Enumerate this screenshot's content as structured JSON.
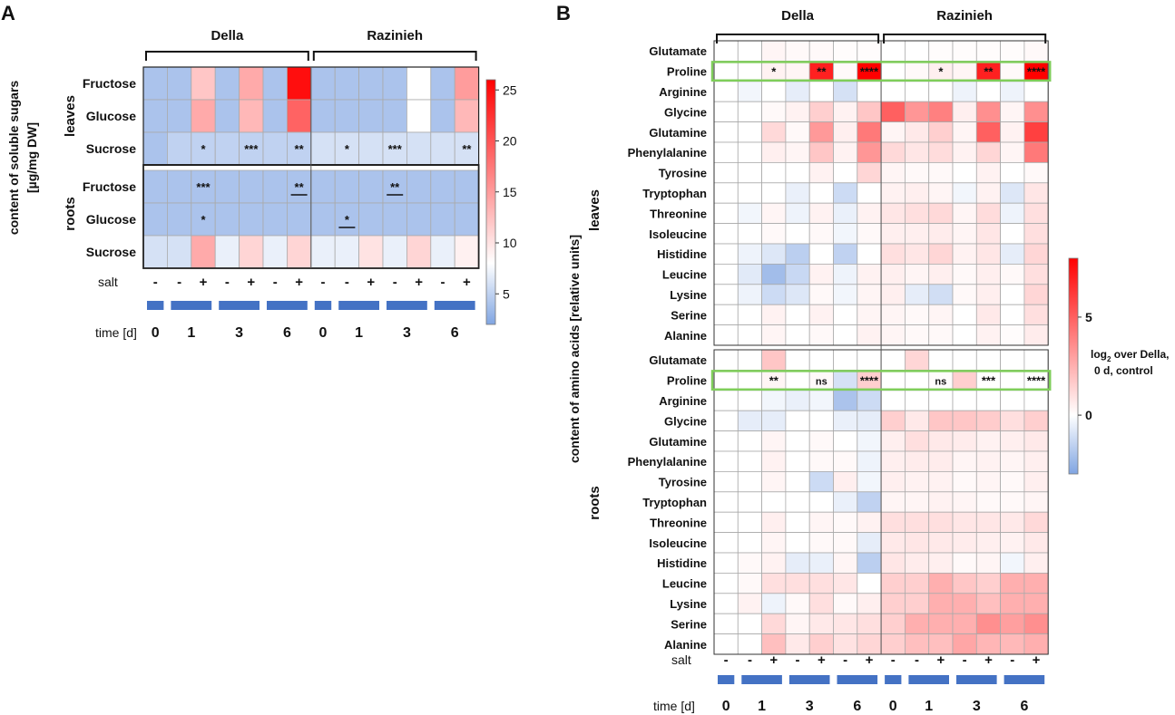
{
  "panels": [
    "A",
    "B"
  ],
  "groups": [
    "Della",
    "Razinieh"
  ],
  "salt_label": "salt",
  "time_label": "time [d]",
  "time_ticks": [
    "0",
    "1",
    "3",
    "6",
    "0",
    "1",
    "3",
    "6"
  ],
  "salt_signs": [
    "-",
    "-",
    "+",
    "-",
    "+",
    "-",
    "+",
    "-",
    "-",
    "+",
    "-",
    "+",
    "-",
    "+"
  ],
  "palette": {
    "low": "#4a7fd6",
    "mid": "#ffffff",
    "high": "#ff0000",
    "grid": "#aaaaaa",
    "highlight": "#7fce5a",
    "bar": "#4472c4"
  },
  "chart_data": [
    {
      "id": "A",
      "type": "heatmap",
      "ylabel": "content of soluble sugars [µg/mg DW]",
      "tissues": [
        "leaves",
        "roots"
      ],
      "columns": 14,
      "rows": [
        "Fructose",
        "Glucose",
        "Sucrose",
        "Fructose",
        "Glucose",
        "Sucrose"
      ],
      "values": [
        [
          4,
          4,
          12,
          4,
          14,
          4,
          25,
          4,
          4,
          4,
          4,
          8,
          4,
          15
        ],
        [
          4,
          4,
          14,
          4,
          13,
          4,
          19,
          4,
          4,
          4,
          4,
          8,
          4,
          13
        ],
        [
          4,
          5,
          5,
          5,
          5,
          5,
          5,
          6,
          6,
          6,
          6,
          6,
          6,
          6
        ],
        [
          4,
          4,
          4,
          4,
          4,
          4,
          4,
          4,
          4,
          4,
          4,
          4,
          4,
          4
        ],
        [
          4,
          4,
          4,
          4,
          4,
          4,
          4,
          4,
          4,
          4,
          4,
          4,
          4,
          4
        ],
        [
          6,
          6,
          14,
          7,
          11,
          7,
          11,
          7,
          7,
          10,
          7,
          11,
          7,
          9
        ]
      ],
      "scale": {
        "min": 2,
        "mid": 8,
        "max": 26,
        "ticks": [
          25,
          20,
          15,
          10,
          5
        ]
      },
      "stars": [
        {
          "row": 2,
          "col": 2,
          "text": "*"
        },
        {
          "row": 2,
          "col": 4,
          "text": "***"
        },
        {
          "row": 2,
          "col": 6,
          "text": "**"
        },
        {
          "row": 2,
          "col": 8,
          "text": "*"
        },
        {
          "row": 2,
          "col": 10,
          "text": "***"
        },
        {
          "row": 2,
          "col": 13,
          "text": "**"
        },
        {
          "row": 3,
          "col": 2,
          "text": "***"
        },
        {
          "row": 3,
          "col": 6,
          "text": "**",
          "underline": true
        },
        {
          "row": 3,
          "col": 10,
          "text": "**",
          "underline": true
        },
        {
          "row": 4,
          "col": 2,
          "text": "*"
        },
        {
          "row": 4,
          "col": 8,
          "text": "*",
          "underline": true
        }
      ]
    },
    {
      "id": "B",
      "type": "heatmap",
      "ylabel": "content of amino acids [relative units]",
      "tissues": [
        "leaves",
        "roots"
      ],
      "columns": 14,
      "rows": [
        "Glutamate",
        "Proline",
        "Arginine",
        "Glycine",
        "Glutamine",
        "Phenylalanine",
        "Tyrosine",
        "Tryptophan",
        "Threonine",
        "Isoleucine",
        "Histidine",
        "Leucine",
        "Lysine",
        "Serine",
        "Alanine",
        "Glutamate",
        "Proline",
        "Arginine",
        "Glycine",
        "Glutamine",
        "Phenylalanine",
        "Tyrosine",
        "Tryptophan",
        "Threonine",
        "Isoleucine",
        "Histidine",
        "Leucine",
        "Lysine",
        "Serine",
        "Alanine"
      ],
      "values": [
        [
          0,
          0,
          0.3,
          0.2,
          0.2,
          0.1,
          0.1,
          0,
          0,
          0.1,
          0.1,
          0.1,
          0.1,
          0.2
        ],
        [
          0,
          0,
          0.4,
          0.3,
          7,
          0.2,
          8,
          0,
          0.2,
          0.5,
          0.3,
          7,
          0.2,
          8
        ],
        [
          0,
          -0.3,
          0,
          -0.6,
          0,
          -1,
          0,
          0,
          0,
          0,
          -0.4,
          0,
          -0.4,
          0
        ],
        [
          0,
          0,
          0.2,
          0.4,
          1.5,
          0.4,
          1.8,
          5,
          3.3,
          4,
          0.5,
          3.5,
          0.3,
          3.5
        ],
        [
          0,
          0,
          1.2,
          0.2,
          3.2,
          0.5,
          4.2,
          0.3,
          0.7,
          1.5,
          0.3,
          5,
          0.4,
          6
        ],
        [
          0,
          0,
          0.5,
          0.3,
          1.8,
          0.4,
          3.3,
          1.2,
          0.8,
          1.1,
          0.4,
          1.3,
          0.3,
          4.2
        ],
        [
          0,
          0,
          0,
          0,
          0.4,
          0,
          1.3,
          0.3,
          0.2,
          0.2,
          0,
          0.4,
          0,
          0.2
        ],
        [
          0,
          0,
          0,
          -0.5,
          0,
          -1.2,
          0,
          0.4,
          0.5,
          0.3,
          -0.3,
          0.4,
          -0.8,
          0.8
        ],
        [
          0,
          -0.3,
          0.3,
          -0.4,
          0.4,
          -0.5,
          0.4,
          0.8,
          1,
          1.2,
          0.3,
          1.1,
          -0.4,
          1
        ],
        [
          0,
          0,
          0.2,
          0,
          0.2,
          -0.3,
          0.2,
          0.5,
          0.5,
          0.6,
          0.3,
          0.8,
          0,
          1
        ],
        [
          0,
          -0.4,
          -0.8,
          -1.6,
          0,
          -1.5,
          0,
          1,
          0.8,
          1.3,
          0.4,
          0.8,
          -0.6,
          1.3
        ],
        [
          0,
          -0.7,
          -2.2,
          -1.3,
          0.4,
          -0.4,
          0.4,
          0.5,
          0.3,
          0.5,
          0.2,
          0.5,
          0.2,
          1
        ],
        [
          0,
          -0.4,
          -1.2,
          -0.8,
          0.2,
          -0.3,
          0.3,
          0.5,
          -0.6,
          -1.1,
          0.2,
          0.5,
          0,
          1.3
        ],
        [
          0,
          0,
          0.4,
          0,
          0.4,
          0,
          0.3,
          0.3,
          0.2,
          0.3,
          0,
          0.7,
          0,
          1
        ],
        [
          0,
          0,
          0.3,
          0,
          0.2,
          0,
          0.4,
          0.3,
          0.2,
          0.2,
          0,
          0.4,
          0.1,
          0.6
        ],
        [
          0,
          0,
          1.8,
          0,
          0,
          0,
          0,
          0,
          1.3,
          0,
          0,
          0,
          0,
          0
        ],
        [
          0,
          0,
          0.3,
          0,
          0.2,
          -1,
          1.5,
          0,
          0,
          0.1,
          1.5,
          0,
          0,
          0
        ],
        [
          0,
          0,
          -0.3,
          -0.5,
          -0.3,
          -2,
          -1.2,
          0,
          0,
          0,
          0,
          0,
          0,
          0
        ],
        [
          0,
          -0.6,
          -0.6,
          0,
          0,
          -0.5,
          -0.6,
          1.5,
          0.7,
          1.8,
          1.8,
          1.6,
          1,
          1.5
        ],
        [
          0,
          0,
          0.3,
          0,
          0.2,
          0,
          -0.3,
          0.5,
          1,
          0.7,
          0.6,
          0.4,
          0.5,
          0.7
        ],
        [
          0,
          0,
          0.4,
          0,
          0.2,
          0.2,
          -0.4,
          0.5,
          0.6,
          0.6,
          0.3,
          0.4,
          0.3,
          0.5
        ],
        [
          0,
          0,
          0.3,
          0,
          -1.2,
          0.5,
          -0.3,
          0.5,
          0.4,
          0.4,
          0.2,
          0.3,
          0.2,
          0.5
        ],
        [
          0,
          0,
          0,
          0,
          0,
          -0.5,
          -1.5,
          0.3,
          0.3,
          0.4,
          0.3,
          0.2,
          0.2,
          0.3
        ],
        [
          0,
          0,
          0.5,
          0,
          0.3,
          0.2,
          0.4,
          1,
          1,
          1,
          0.8,
          0.8,
          0.7,
          1.2
        ],
        [
          0,
          0,
          0.3,
          0,
          0.2,
          0.2,
          -0.6,
          0.7,
          0.8,
          0.7,
          0.6,
          0.5,
          0.4,
          0.7
        ],
        [
          0,
          0.2,
          0.4,
          -0.6,
          -0.5,
          0.3,
          -1.6,
          0.8,
          0.6,
          0.5,
          0.2,
          0.3,
          -0.3,
          0.5
        ],
        [
          0,
          0.2,
          1,
          1,
          1,
          0.8,
          0,
          1.5,
          1.5,
          2.5,
          1.8,
          1.5,
          2.5,
          2.5
        ],
        [
          0,
          0.4,
          -0.4,
          0.2,
          1,
          0.2,
          0.5,
          1.5,
          1.5,
          2.5,
          2.5,
          2,
          2.5,
          2.5
        ],
        [
          0,
          0,
          1.2,
          0.3,
          0.7,
          0.8,
          1,
          1.5,
          2.5,
          2.5,
          2.5,
          3.5,
          3,
          3.5
        ],
        [
          0,
          0,
          2,
          0.7,
          1.5,
          0.9,
          1.3,
          1.5,
          2,
          2,
          2.8,
          2.3,
          2.2,
          2.5
        ]
      ],
      "scale": {
        "min": -3,
        "mid": 0,
        "max": 8,
        "ticks": [
          5,
          0
        ],
        "label_lines": [
          "over Della,",
          "0 d, control"
        ],
        "label_prefix": "log",
        "label_sub": "2"
      },
      "highlight_rows": [
        1,
        16
      ],
      "stars": [
        {
          "row": 1,
          "col": 2,
          "text": "*"
        },
        {
          "row": 1,
          "col": 4,
          "text": "**"
        },
        {
          "row": 1,
          "col": 6,
          "text": "****"
        },
        {
          "row": 1,
          "col": 9,
          "text": "*"
        },
        {
          "row": 1,
          "col": 11,
          "text": "**"
        },
        {
          "row": 1,
          "col": 13,
          "text": "****"
        },
        {
          "row": 16,
          "col": 2,
          "text": "**"
        },
        {
          "row": 16,
          "col": 4,
          "text": "ns"
        },
        {
          "row": 16,
          "col": 6,
          "text": "****"
        },
        {
          "row": 16,
          "col": 9,
          "text": "ns"
        },
        {
          "row": 16,
          "col": 11,
          "text": "***"
        },
        {
          "row": 16,
          "col": 13,
          "text": "****"
        }
      ]
    }
  ]
}
